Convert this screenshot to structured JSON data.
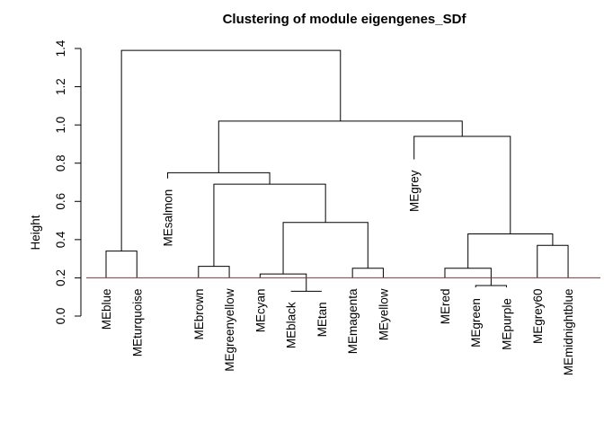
{
  "chart_data": {
    "type": "dendrogram",
    "title": "Clustering of module eigengenes_SDf",
    "ylabel": "Height",
    "ylim": [
      0,
      1.4
    ],
    "yticks": [
      "0.0",
      "0.2",
      "0.4",
      "0.6",
      "0.8",
      "1.0",
      "1.2",
      "1.4"
    ],
    "cut_height": 0.2,
    "cut_color": "#ff0000",
    "leaves": [
      {
        "id": "blue",
        "label": "MEblue",
        "height": 0.2
      },
      {
        "id": "turquoise",
        "label": "MEturquoise",
        "height": 0.2
      },
      {
        "id": "salmon",
        "label": "MEsalmon",
        "height": 0.72
      },
      {
        "id": "brown",
        "label": "MEbrown",
        "height": 0.2
      },
      {
        "id": "greenyellow",
        "label": "MEgreenyellow",
        "height": 0.2
      },
      {
        "id": "cyan",
        "label": "MEcyan",
        "height": 0.2
      },
      {
        "id": "black",
        "label": "MEblack",
        "height": 0.13
      },
      {
        "id": "tan",
        "label": "MEtan",
        "height": 0.13
      },
      {
        "id": "magenta",
        "label": "MEmagenta",
        "height": 0.2
      },
      {
        "id": "yellow",
        "label": "MEyellow",
        "height": 0.2
      },
      {
        "id": "grey",
        "label": "MEgrey",
        "height": 0.82
      },
      {
        "id": "red",
        "label": "MEred",
        "height": 0.2
      },
      {
        "id": "green",
        "label": "MEgreen",
        "height": 0.15
      },
      {
        "id": "purple",
        "label": "MEpurple",
        "height": 0.15
      },
      {
        "id": "grey60",
        "label": "MEgrey60",
        "height": 0.2
      },
      {
        "id": "midnightblue",
        "label": "MEmidnightblue",
        "height": 0.2
      }
    ],
    "merges": [
      {
        "id": "m_bt",
        "height": 0.34,
        "left": "blue",
        "right": "turquoise"
      },
      {
        "id": "m_blt",
        "height": 0.13,
        "left": "black",
        "right": "tan"
      },
      {
        "id": "m_gp",
        "height": 0.16,
        "left": "green",
        "right": "purple"
      },
      {
        "id": "m_bg",
        "height": 0.26,
        "left": "brown",
        "right": "greenyellow"
      },
      {
        "id": "m_cbt",
        "height": 0.22,
        "left": "cyan",
        "right": "m_blt"
      },
      {
        "id": "m_my",
        "height": 0.25,
        "left": "magenta",
        "right": "yellow"
      },
      {
        "id": "m_rgp",
        "height": 0.25,
        "left": "red",
        "right": "m_gp"
      },
      {
        "id": "m_gm",
        "height": 0.37,
        "left": "grey60",
        "right": "midnightblue"
      },
      {
        "id": "m_rgpgm",
        "height": 0.43,
        "left": "m_rgp",
        "right": "m_gm"
      },
      {
        "id": "m_cbtmy",
        "height": 0.49,
        "left": "m_cbt",
        "right": "m_my"
      },
      {
        "id": "m_bgcbtmy",
        "height": 0.69,
        "left": "m_bg",
        "right": "m_cbtmy"
      },
      {
        "id": "m_sal",
        "height": 0.75,
        "left": "salmon",
        "right": "m_bgcbtmy"
      },
      {
        "id": "m_grey",
        "height": 0.94,
        "left": "grey",
        "right": "m_rgpgm"
      },
      {
        "id": "m_big",
        "height": 1.02,
        "left": "m_sal",
        "right": "m_grey"
      },
      {
        "id": "m_root",
        "height": 1.39,
        "left": "m_bt",
        "right": "m_big"
      }
    ]
  }
}
